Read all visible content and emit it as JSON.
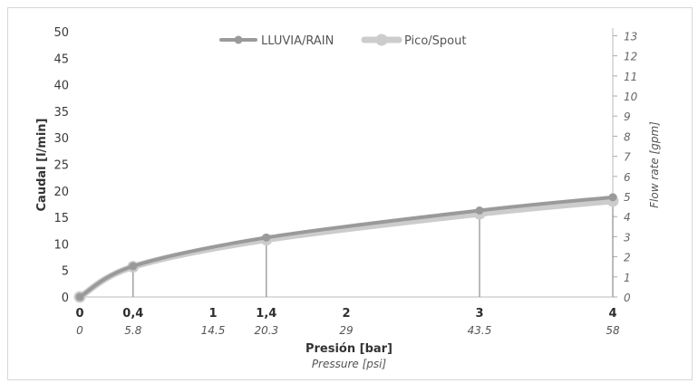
{
  "chart_data": {
    "type": "line",
    "xlabel": "Presión [bar]",
    "xlabel2": "Pressure [psi]",
    "ylabel": "Caudal [l/min]",
    "ylabel2": "Flow rate [gpm]",
    "x_ticks": [
      "0",
      "0,4",
      "1",
      "1,4",
      "2",
      "3",
      "4"
    ],
    "x_ticks_psi": [
      "0",
      "5.8",
      "14.5",
      "20.3",
      "29",
      "43.5",
      "58"
    ],
    "x_tick_values": [
      0,
      0.4,
      1,
      1.4,
      2,
      3,
      4
    ],
    "y_ticks": [
      "0",
      "5",
      "10",
      "15",
      "20",
      "25",
      "30",
      "35",
      "40",
      "45",
      "50"
    ],
    "y2_ticks": [
      "0",
      "1",
      "2",
      "3",
      "4",
      "5",
      "6",
      "7",
      "8",
      "9",
      "10",
      "11",
      "12",
      "13"
    ],
    "xlim": [
      0,
      4
    ],
    "ylim": [
      0,
      50
    ],
    "y2lim": [
      0,
      13.2
    ],
    "legend_position": "top-center",
    "grid": false,
    "drop_lines_at": [
      0.4,
      1.4,
      3,
      4
    ],
    "series": [
      {
        "name": "LLUVIA/RAIN",
        "color": "#9a9a9a",
        "x": [
          0,
          0.4,
          1.4,
          3,
          4
        ],
        "y": [
          0,
          5.8,
          11.2,
          16.3,
          18.8
        ]
      },
      {
        "name": "Pico/Spout",
        "color": "#cccccc",
        "x": [
          0,
          0.4,
          1.4,
          3,
          4
        ],
        "y": [
          0,
          5.7,
          10.8,
          15.7,
          18.1
        ]
      }
    ]
  }
}
